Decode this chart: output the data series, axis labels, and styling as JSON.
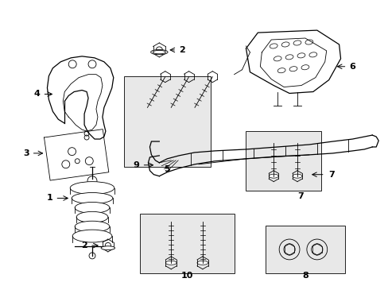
{
  "background_color": "#ffffff",
  "line_color": "#000000",
  "box_fill": "#e8e8e8",
  "figsize": [
    4.89,
    3.6
  ],
  "dpi": 100
}
